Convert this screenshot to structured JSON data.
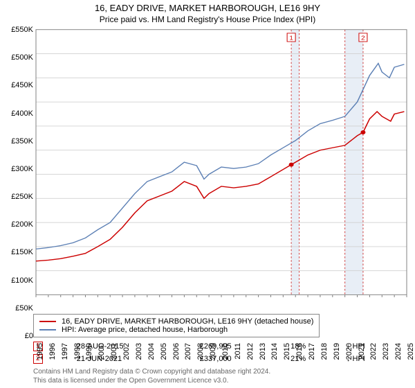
{
  "title": "16, EADY DRIVE, MARKET HARBOROUGH, LE16 9HY",
  "subtitle": "Price paid vs. HM Land Registry's House Price Index (HPI)",
  "chart": {
    "type": "line",
    "background_color": "#ffffff",
    "gridline_color": "#d0d0d0",
    "axis_color": "#808080",
    "axis_font_size": 11,
    "y": {
      "min": 0,
      "max": 550,
      "step": 50,
      "labels": [
        "£0",
        "£50K",
        "£100K",
        "£150K",
        "£200K",
        "£250K",
        "£300K",
        "£350K",
        "£400K",
        "£450K",
        "£500K",
        "£550K"
      ]
    },
    "x": {
      "min": 1995,
      "max": 2025,
      "step": 1,
      "labels": [
        "1995",
        "1996",
        "1997",
        "1998",
        "1999",
        "2000",
        "2001",
        "2002",
        "2003",
        "2004",
        "2005",
        "2006",
        "2007",
        "2008",
        "2009",
        "2010",
        "2011",
        "2012",
        "2013",
        "2014",
        "2015",
        "2016",
        "2017",
        "2018",
        "2019",
        "2020",
        "2021",
        "2022",
        "2023",
        "2024",
        "2025"
      ]
    },
    "shaded_bands": [
      {
        "x_from": 2015.66,
        "x_to": 2016.3,
        "fill": "#e8eef6"
      },
      {
        "x_from": 2020.0,
        "x_to": 2021.47,
        "fill": "#e8eef6"
      }
    ],
    "shaded_band_dash_color": "#d04040",
    "series": [
      {
        "id": "price_paid",
        "label": "16, EADY DRIVE, MARKET HARBOROUGH, LE16 9HY (detached house)",
        "color": "#cc0000",
        "line_width": 1.6,
        "points": [
          [
            1995,
            70
          ],
          [
            1996,
            72
          ],
          [
            1997,
            75
          ],
          [
            1998,
            80
          ],
          [
            1999,
            86
          ],
          [
            2000,
            100
          ],
          [
            2001,
            115
          ],
          [
            2002,
            140
          ],
          [
            2003,
            170
          ],
          [
            2004,
            195
          ],
          [
            2005,
            205
          ],
          [
            2006,
            215
          ],
          [
            2007,
            235
          ],
          [
            2008,
            225
          ],
          [
            2008.6,
            200
          ],
          [
            2009,
            210
          ],
          [
            2010,
            225
          ],
          [
            2011,
            222
          ],
          [
            2012,
            225
          ],
          [
            2013,
            230
          ],
          [
            2014,
            245
          ],
          [
            2015,
            260
          ],
          [
            2015.66,
            269.995
          ],
          [
            2016,
            275
          ],
          [
            2017,
            290
          ],
          [
            2018,
            300
          ],
          [
            2019,
            305
          ],
          [
            2020,
            310
          ],
          [
            2021,
            330
          ],
          [
            2021.47,
            337
          ],
          [
            2022,
            365
          ],
          [
            2022.6,
            380
          ],
          [
            2023,
            370
          ],
          [
            2023.7,
            360
          ],
          [
            2024,
            375
          ],
          [
            2024.8,
            380
          ]
        ]
      },
      {
        "id": "hpi",
        "label": "HPI: Average price, detached house, Harborough",
        "color": "#5b7fb4",
        "line_width": 1.5,
        "points": [
          [
            1995,
            95
          ],
          [
            1996,
            98
          ],
          [
            1997,
            102
          ],
          [
            1998,
            108
          ],
          [
            1999,
            118
          ],
          [
            2000,
            135
          ],
          [
            2001,
            150
          ],
          [
            2002,
            180
          ],
          [
            2003,
            210
          ],
          [
            2004,
            235
          ],
          [
            2005,
            245
          ],
          [
            2006,
            255
          ],
          [
            2007,
            275
          ],
          [
            2008,
            268
          ],
          [
            2008.6,
            240
          ],
          [
            2009,
            250
          ],
          [
            2010,
            265
          ],
          [
            2011,
            262
          ],
          [
            2012,
            265
          ],
          [
            2013,
            272
          ],
          [
            2014,
            290
          ],
          [
            2015,
            305
          ],
          [
            2016,
            320
          ],
          [
            2017,
            340
          ],
          [
            2018,
            355
          ],
          [
            2019,
            362
          ],
          [
            2020,
            370
          ],
          [
            2021,
            400
          ],
          [
            2022,
            455
          ],
          [
            2022.7,
            480
          ],
          [
            2023,
            462
          ],
          [
            2023.6,
            450
          ],
          [
            2024,
            472
          ],
          [
            2024.8,
            478
          ]
        ]
      }
    ],
    "marker_points": [
      {
        "n": "1",
        "x": 2015.66,
        "y": 269.995,
        "color": "#cc0000"
      },
      {
        "n": "2",
        "x": 2021.47,
        "y": 337,
        "color": "#cc0000"
      }
    ]
  },
  "legend": {
    "series": [
      "price_paid",
      "hpi"
    ]
  },
  "markers_table": {
    "heading_hpi_symbol": "↓ HPI",
    "rows": [
      {
        "n": "1",
        "date": "28-AUG-2015",
        "price": "£269,995",
        "delta": "18%",
        "rel": "↓ HPI"
      },
      {
        "n": "2",
        "date": "21-JUN-2021",
        "price": "£337,000",
        "delta": "21%",
        "rel": "↓ HPI"
      }
    ]
  },
  "fineprint": {
    "line1": "Contains HM Land Registry data © Crown copyright and database right 2024.",
    "line2": "This data is licensed under the Open Government Licence v3.0."
  }
}
